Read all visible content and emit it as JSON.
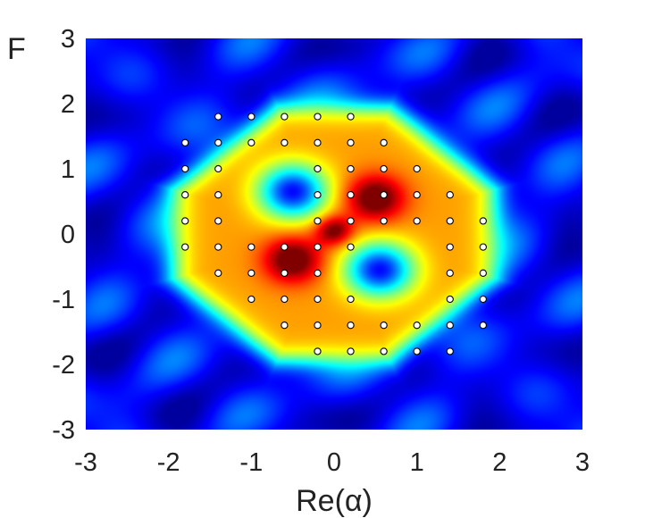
{
  "chart_data": {
    "type": "heatmap",
    "title": "",
    "xlabel": "Re(α)",
    "ylabel": "F",
    "xlim": [
      -3,
      3
    ],
    "ylim": [
      -3,
      3
    ],
    "x_ticks": [
      "-3",
      "-2",
      "-1",
      "0",
      "1",
      "2",
      "3"
    ],
    "y_ticks": [
      "3",
      "2",
      "1",
      "0",
      "-1",
      "-2",
      "-3"
    ],
    "colormap": "jet",
    "colors": {
      "background_min": "#00007f",
      "peak": "#7f0000",
      "marker_fill": "#ffffff",
      "marker_edge": "#000000"
    },
    "grid": false,
    "legend": "none",
    "series": [
      {
        "type": "scatter",
        "points": [
          [
            -1.4,
            1.8
          ],
          [
            -1.0,
            1.8
          ],
          [
            -0.6,
            1.8
          ],
          [
            -0.2,
            1.8
          ],
          [
            0.2,
            1.8
          ],
          [
            -1.8,
            1.4
          ],
          [
            -1.4,
            1.4
          ],
          [
            -1.0,
            1.4
          ],
          [
            -0.6,
            1.4
          ],
          [
            -0.2,
            1.4
          ],
          [
            0.2,
            1.4
          ],
          [
            0.6,
            1.4
          ],
          [
            -1.8,
            1.0
          ],
          [
            -1.4,
            1.0
          ],
          [
            -0.2,
            1.0
          ],
          [
            0.2,
            1.0
          ],
          [
            0.6,
            1.0
          ],
          [
            1.0,
            1.0
          ],
          [
            -1.8,
            0.6
          ],
          [
            -1.4,
            0.6
          ],
          [
            -0.2,
            0.6
          ],
          [
            0.2,
            0.6
          ],
          [
            0.6,
            0.6
          ],
          [
            1.0,
            0.6
          ],
          [
            1.4,
            0.6
          ],
          [
            -1.8,
            0.2
          ],
          [
            -1.4,
            0.2
          ],
          [
            -0.2,
            0.2
          ],
          [
            0.2,
            0.2
          ],
          [
            0.6,
            0.2
          ],
          [
            1.0,
            0.2
          ],
          [
            1.4,
            0.2
          ],
          [
            1.8,
            0.2
          ],
          [
            -1.8,
            -0.2
          ],
          [
            -1.4,
            -0.2
          ],
          [
            -1.0,
            -0.2
          ],
          [
            -0.6,
            -0.2
          ],
          [
            -0.2,
            -0.2
          ],
          [
            0.2,
            -0.2
          ],
          [
            1.4,
            -0.2
          ],
          [
            1.8,
            -0.2
          ],
          [
            -1.4,
            -0.6
          ],
          [
            -1.0,
            -0.6
          ],
          [
            -0.6,
            -0.6
          ],
          [
            -0.2,
            -0.6
          ],
          [
            1.4,
            -0.6
          ],
          [
            1.8,
            -0.6
          ],
          [
            -1.0,
            -1.0
          ],
          [
            -0.6,
            -1.0
          ],
          [
            -0.2,
            -1.0
          ],
          [
            0.2,
            -1.0
          ],
          [
            1.4,
            -1.0
          ],
          [
            1.8,
            -1.0
          ],
          [
            -0.6,
            -1.4
          ],
          [
            -0.2,
            -1.4
          ],
          [
            0.2,
            -1.4
          ],
          [
            0.6,
            -1.4
          ],
          [
            1.0,
            -1.4
          ],
          [
            1.4,
            -1.4
          ],
          [
            1.8,
            -1.4
          ],
          [
            -0.2,
            -1.8
          ],
          [
            0.2,
            -1.8
          ],
          [
            0.6,
            -1.8
          ],
          [
            1.0,
            -1.8
          ],
          [
            1.4,
            -1.8
          ]
        ]
      }
    ]
  }
}
